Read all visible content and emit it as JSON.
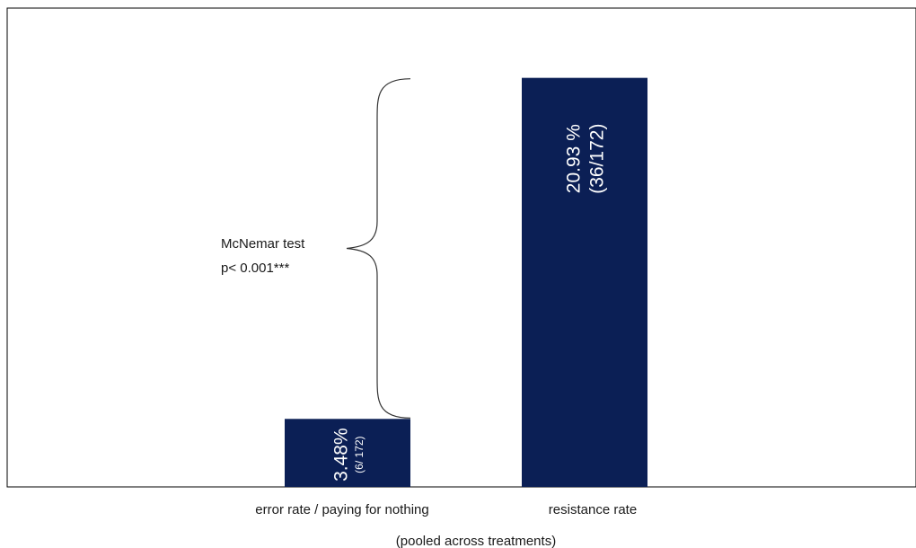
{
  "chart_data": {
    "type": "bar",
    "categories": [
      "error rate / paying for nothing",
      "resistance rate"
    ],
    "values": [
      3.48,
      20.93
    ],
    "ylim": [
      0,
      24.5
    ],
    "bar_labels": [
      {
        "main": "3.48%",
        "sub": "(6/ 172)"
      },
      {
        "main": "20.93 %",
        "sub": "(36/172)"
      }
    ],
    "xlabel": "(pooled across treatments)",
    "ylabel": "",
    "grid": false,
    "annotation": {
      "lines": [
        "McNemar test",
        "p< 0.001***"
      ]
    },
    "colors": {
      "bar": "#0b1f55",
      "axis": "#000000",
      "brace": "#333333"
    }
  }
}
